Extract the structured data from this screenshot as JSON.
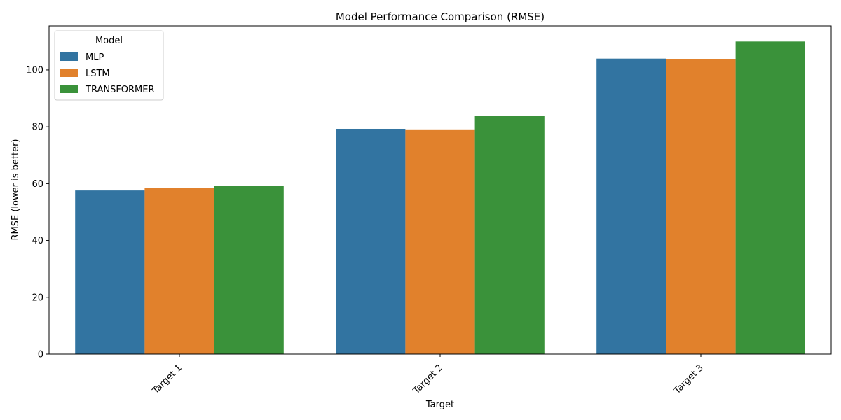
{
  "chart_data": {
    "type": "bar",
    "title": "Model Performance Comparison (RMSE)",
    "xlabel": "Target",
    "ylabel": "RMSE (lower is better)",
    "categories": [
      "Target 1",
      "Target 2",
      "Target 3"
    ],
    "series": [
      {
        "name": "MLP",
        "color": "#3274a1",
        "values": [
          57.6,
          79.3,
          104.0
        ]
      },
      {
        "name": "LSTM",
        "color": "#e1812c",
        "values": [
          58.6,
          79.1,
          103.8
        ]
      },
      {
        "name": "TRANSFORMER",
        "color": "#3a923a",
        "values": [
          59.3,
          83.8,
          110.0
        ]
      }
    ],
    "ylim": [
      0,
      115.5
    ],
    "yticks": [
      0,
      20,
      40,
      60,
      80,
      100
    ],
    "legend": {
      "title": "Model",
      "placement": "top-left"
    },
    "xtick_rotation": 45,
    "grid": false
  }
}
